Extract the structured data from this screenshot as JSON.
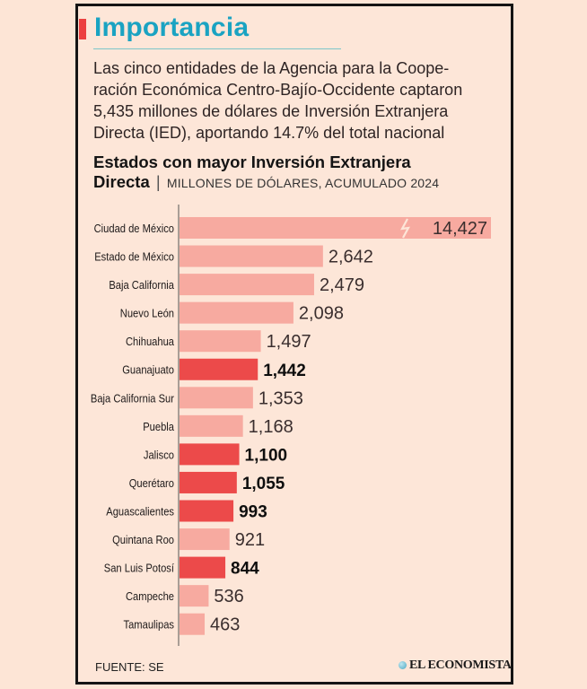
{
  "header": {
    "title": "Importancia",
    "intro_lines": [
      "Las cinco entidades de la Agencia para la Coope-",
      "ración Económica Centro-Bajío-Occidente  captaron",
      "5,435 millones de dólares de Inversión Extranjera",
      "Directa (IED), aportando 14.7% del total nacional"
    ]
  },
  "colors": {
    "title": "#1aa3c2",
    "accent": "#ec4040",
    "bar_normal": "#f7aaa0",
    "bar_highlight": "#ec4a4a",
    "background": "#fde6d8"
  },
  "chart_data": {
    "type": "bar",
    "orientation": "horizontal",
    "title": "Estados con mayor Inversión Extranjera Directa",
    "subtitle": "MILLONES DE DÓLARES, ACUMULADO 2024",
    "xlabel": "",
    "ylabel": "",
    "grid": false,
    "axis_break_on": "Ciudad de México",
    "categories": [
      "Ciudad de México",
      "Estado de México",
      "Baja California",
      "Nuevo León",
      "Chihuahua",
      "Guanajuato",
      "Baja California Sur",
      "Puebla",
      "Jalisco",
      "Querétaro",
      "Aguascalientes",
      "Quintana Roo",
      "San Luis Potosí",
      "Campeche",
      "Tamaulipas"
    ],
    "values": [
      14427,
      2642,
      2479,
      2098,
      1497,
      1442,
      1353,
      1168,
      1100,
      1055,
      993,
      921,
      844,
      536,
      463
    ],
    "value_labels": [
      "14,427",
      "2,642",
      "2,479",
      "2,098",
      "1,497",
      "1,442",
      "1,353",
      "1,168",
      "1,100",
      "1,055",
      "993",
      "921",
      "844",
      "536",
      "463"
    ],
    "highlighted": [
      "Guanajuato",
      "Jalisco",
      "Querétaro",
      "Aguascalientes",
      "San Luis Potosí"
    ]
  },
  "footer": {
    "source": "FUENTE: SE",
    "brand": "EL ECONOMISTA"
  }
}
